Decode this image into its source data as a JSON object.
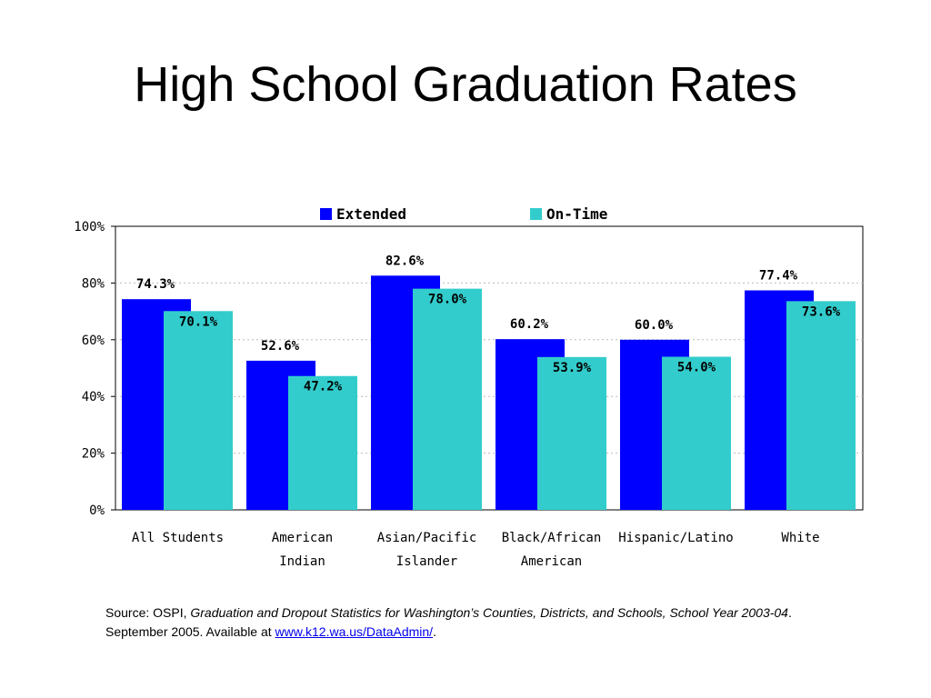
{
  "slide": {
    "title": "High School Graduation Rates"
  },
  "source": {
    "prefix": "Source: OSPI, ",
    "publication": "Graduation and Dropout Statistics for Washington’s Counties, Districts, and Schools, School Year 2003-04",
    "middle": ".  September 2005. Available at ",
    "link_text": "www.k12.wa.us/DataAdmin/",
    "suffix": "."
  },
  "chart_data": {
    "type": "bar",
    "title": "",
    "xlabel": "",
    "ylabel": "",
    "ylim": [
      0,
      100
    ],
    "yticks": [
      "0%",
      "20%",
      "40%",
      "60%",
      "80%",
      "100%"
    ],
    "grid": true,
    "legend_position": "top",
    "categories": [
      [
        "All Students"
      ],
      [
        "American",
        "Indian"
      ],
      [
        "Asian/Pacific",
        "Islander"
      ],
      [
        "Black/African",
        "American"
      ],
      [
        "Hispanic/Latino"
      ],
      [
        "White"
      ]
    ],
    "series": [
      {
        "name": "Extended",
        "color": "#0000ff",
        "values": [
          74.3,
          52.6,
          82.6,
          60.2,
          60.0,
          77.4
        ],
        "labels": [
          "74.3%",
          "52.6%",
          "82.6%",
          "60.2%",
          "60.0%",
          "77.4%"
        ]
      },
      {
        "name": "On-Time",
        "color": "#33cccc",
        "values": [
          70.1,
          47.2,
          78.0,
          53.9,
          54.0,
          73.6
        ],
        "labels": [
          "70.1%",
          "47.2%",
          "78.0%",
          "53.9%",
          "54.0%",
          "73.6%"
        ]
      }
    ]
  }
}
